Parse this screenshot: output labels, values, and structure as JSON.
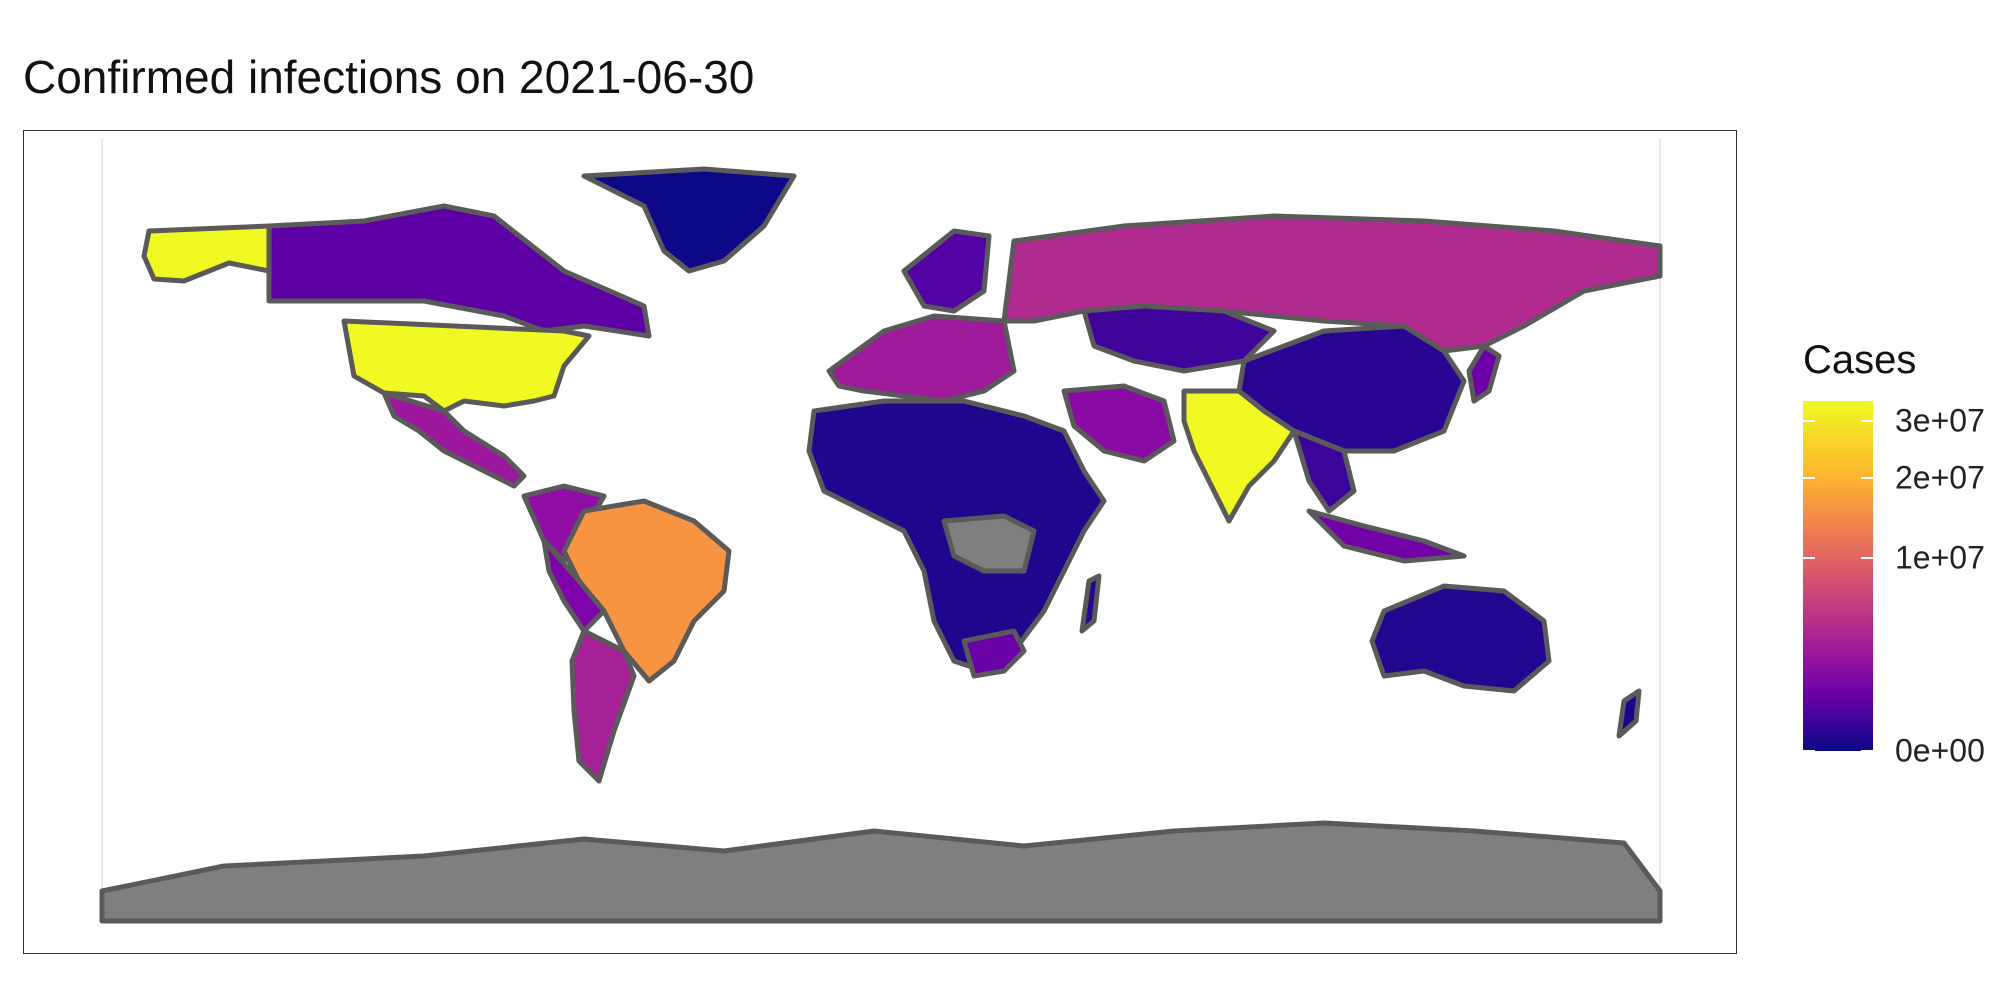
{
  "title": "Confirmed infections on 2021-06-30",
  "legend": {
    "title": "Cases",
    "ticks": [
      {
        "label": "3e+07",
        "value": 30000000
      },
      {
        "label": "2e+07",
        "value": 20000000
      },
      {
        "label": "1e+07",
        "value": 10000000
      },
      {
        "label": "0e+00",
        "value": 0
      }
    ],
    "scale_max": 34000000,
    "palette": "plasma"
  },
  "colors": {
    "no_data": "#7f7f7f",
    "border": "#5a5a5a",
    "low": "#0d0887",
    "mid": "#b12a90",
    "high": "#f0f921"
  },
  "regions": [
    {
      "name": "United States",
      "level": "high"
    },
    {
      "name": "India",
      "level": "high"
    },
    {
      "name": "Brazil",
      "level": "orange"
    },
    {
      "name": "Russia",
      "level": "mid"
    },
    {
      "name": "Antarctica",
      "level": "no_data"
    }
  ]
}
